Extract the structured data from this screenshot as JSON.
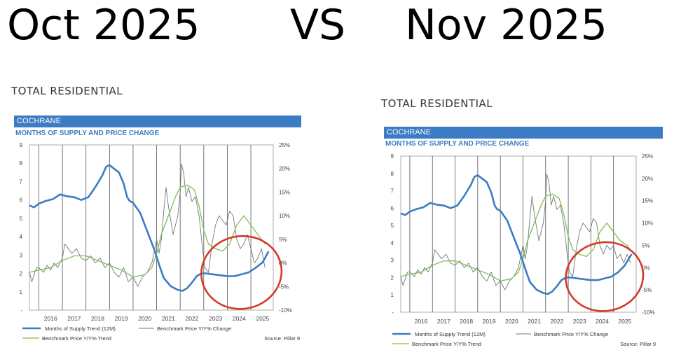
{
  "header": {
    "left": "Oct 2025",
    "vs": "VS",
    "right": "Nov 2025"
  },
  "section_title": "TOTAL RESIDENTIAL",
  "colors": {
    "supply": "#3b7cc4",
    "price": "#777777",
    "trend": "#7fbf4d",
    "circle": "#d23a2a",
    "bar": "#3b7cc4"
  },
  "chart_data": [
    {
      "type": "line",
      "panel": "Oct 2025",
      "area_label": "COCHRANE",
      "title": "MONTHS OF SUPPLY AND PRICE CHANGE",
      "x_tick_labels": [
        "2016",
        "2017",
        "2018",
        "2019",
        "2020",
        "2021",
        "2022",
        "2023",
        "2024",
        "2025"
      ],
      "y_left_ticks": [
        "9",
        "8",
        "7",
        "6",
        "5",
        "4",
        "3",
        "2",
        "1",
        "-"
      ],
      "y_right_ticks": [
        "25%",
        "20%",
        "15%",
        "10%",
        "5%",
        "0%",
        "-5%",
        "-10%"
      ],
      "ylim_left": [
        0,
        9
      ],
      "ylim_right": [
        -10,
        25
      ],
      "xlim": [
        2015.6,
        2025.95
      ],
      "source": "Source: Pillar 9",
      "legend": [
        "Months of Supply Trend (12M)",
        "Benchmark Price Y/Y% Change",
        "Benchmark Price Y/Y% Trend"
      ],
      "series": [
        {
          "name": "Months of Supply Trend (12M)",
          "axis": "left",
          "x": [
            2015.6,
            2015.8,
            2016.0,
            2016.3,
            2016.6,
            2016.9,
            2017.2,
            2017.5,
            2017.8,
            2018.1,
            2018.4,
            2018.7,
            2018.85,
            2019.0,
            2019.2,
            2019.4,
            2019.6,
            2019.75,
            2019.85,
            2020.0,
            2020.3,
            2020.6,
            2020.9,
            2021.1,
            2021.3,
            2021.6,
            2021.9,
            2022.1,
            2022.3,
            2022.5,
            2022.7,
            2022.9,
            2023.1,
            2023.4,
            2023.7,
            2024.0,
            2024.3,
            2024.6,
            2024.9,
            2025.2,
            2025.5,
            2025.75
          ],
          "y": [
            5.7,
            5.6,
            5.8,
            5.95,
            6.05,
            6.3,
            6.2,
            6.15,
            6.0,
            6.15,
            6.7,
            7.35,
            7.8,
            7.9,
            7.7,
            7.5,
            6.9,
            6.15,
            5.95,
            5.85,
            5.3,
            4.3,
            3.3,
            2.5,
            1.75,
            1.3,
            1.1,
            1.05,
            1.2,
            1.5,
            1.85,
            2.0,
            2.0,
            1.95,
            1.9,
            1.85,
            1.85,
            1.95,
            2.05,
            2.3,
            2.6,
            3.2
          ]
        },
        {
          "name": "Benchmark Price Y/Y% Change",
          "axis": "right",
          "x": [
            2015.6,
            2015.7,
            2015.9,
            2016.0,
            2016.2,
            2016.35,
            2016.5,
            2016.65,
            2016.8,
            2017.0,
            2017.1,
            2017.25,
            2017.4,
            2017.6,
            2017.8,
            2018.0,
            2018.2,
            2018.4,
            2018.6,
            2018.8,
            2019.0,
            2019.2,
            2019.4,
            2019.6,
            2019.8,
            2020.0,
            2020.2,
            2020.4,
            2020.6,
            2020.8,
            2021.0,
            2021.1,
            2021.2,
            2021.3,
            2021.4,
            2021.5,
            2021.7,
            2021.9,
            2022.0,
            2022.05,
            2022.15,
            2022.25,
            2022.35,
            2022.5,
            2022.65,
            2022.8,
            2022.95,
            2023.05,
            2023.2,
            2023.35,
            2023.5,
            2023.65,
            2023.8,
            2023.95,
            2024.1,
            2024.25,
            2024.4,
            2024.55,
            2024.7,
            2024.85,
            2025.0,
            2025.15,
            2025.3,
            2025.45,
            2025.6
          ],
          "y": [
            -2,
            -4,
            -1,
            -1,
            -2,
            -0.5,
            -1.5,
            0,
            -1,
            1,
            4,
            3,
            2,
            3,
            1,
            0.5,
            1.5,
            0,
            1,
            -1,
            0,
            -2,
            -3,
            -1,
            -4,
            -3,
            -5,
            -3,
            -2,
            0,
            5,
            2,
            5,
            11,
            16,
            12,
            6,
            10,
            15,
            21,
            19,
            14,
            16,
            13,
            14,
            10,
            3,
            -1,
            -2,
            4,
            8,
            10,
            9,
            8,
            11,
            10,
            5,
            3,
            4,
            6,
            3,
            0,
            1,
            3,
            -1
          ]
        },
        {
          "name": "Benchmark Price Y/Y% Trend",
          "axis": "right",
          "x": [
            2015.6,
            2016.0,
            2016.5,
            2017.0,
            2017.5,
            2018.0,
            2018.5,
            2019.0,
            2019.5,
            2020.0,
            2020.5,
            2020.8,
            2021.0,
            2021.2,
            2021.5,
            2021.8,
            2022.0,
            2022.3,
            2022.6,
            2022.8,
            2023.0,
            2023.2,
            2023.5,
            2023.8,
            2024.1,
            2024.4,
            2024.7,
            2025.0,
            2025.3,
            2025.6
          ],
          "y": [
            -2,
            -1.5,
            -1,
            0.5,
            1.5,
            1.5,
            0.5,
            -0.5,
            -1.5,
            -3,
            -2.5,
            -1,
            2,
            6,
            10,
            14,
            16,
            16.5,
            15.5,
            12,
            7,
            4,
            3,
            2.5,
            4,
            8,
            10,
            8,
            6,
            4
          ]
        }
      ]
    },
    {
      "type": "line",
      "panel": "Nov 2025",
      "area_label": "COCHRANE",
      "title": "MONTHS OF SUPPLY AND PRICE CHANGE",
      "x_tick_labels": [
        "2016",
        "2017",
        "2018",
        "2019",
        "2020",
        "2021",
        "2022",
        "2023",
        "2024",
        "2025"
      ],
      "y_left_ticks": [
        "9",
        "8",
        "7",
        "6",
        "5",
        "4",
        "3",
        "2",
        "1",
        "-"
      ],
      "y_right_ticks": [
        "25%",
        "20%",
        "15%",
        "10%",
        "5%",
        "0%",
        "-5%",
        "-10%"
      ],
      "ylim_left": [
        0,
        9
      ],
      "ylim_right": [
        -10,
        25
      ],
      "xlim": [
        2015.6,
        2026.0
      ],
      "source": "Source: Pillar 9",
      "legend": [
        "Months of Supply Trend (12M)",
        "Benchmark Price Y/Y% Change",
        "Benchmark Price Y/Y% Trend"
      ],
      "series": [
        {
          "name": "Months of Supply Trend (12M)",
          "axis": "left",
          "x": [
            2015.6,
            2015.8,
            2016.0,
            2016.3,
            2016.6,
            2016.9,
            2017.2,
            2017.5,
            2017.8,
            2018.1,
            2018.4,
            2018.7,
            2018.85,
            2019.0,
            2019.2,
            2019.4,
            2019.6,
            2019.75,
            2019.85,
            2020.0,
            2020.3,
            2020.6,
            2020.9,
            2021.1,
            2021.3,
            2021.6,
            2021.9,
            2022.1,
            2022.3,
            2022.5,
            2022.7,
            2022.9,
            2023.1,
            2023.4,
            2023.7,
            2024.0,
            2024.3,
            2024.6,
            2024.9,
            2025.2,
            2025.5,
            2025.8
          ],
          "y": [
            5.7,
            5.6,
            5.8,
            5.95,
            6.05,
            6.3,
            6.2,
            6.15,
            6.0,
            6.15,
            6.7,
            7.35,
            7.8,
            7.9,
            7.7,
            7.5,
            6.9,
            6.15,
            5.95,
            5.85,
            5.3,
            4.3,
            3.3,
            2.5,
            1.75,
            1.3,
            1.1,
            1.05,
            1.2,
            1.5,
            1.85,
            2.0,
            2.0,
            1.95,
            1.9,
            1.85,
            1.85,
            1.95,
            2.05,
            2.3,
            2.7,
            3.35
          ]
        },
        {
          "name": "Benchmark Price Y/Y% Change",
          "axis": "right",
          "x": [
            2015.6,
            2015.7,
            2015.9,
            2016.0,
            2016.2,
            2016.35,
            2016.5,
            2016.65,
            2016.8,
            2017.0,
            2017.1,
            2017.25,
            2017.4,
            2017.6,
            2017.8,
            2018.0,
            2018.2,
            2018.4,
            2018.6,
            2018.8,
            2019.0,
            2019.2,
            2019.4,
            2019.6,
            2019.8,
            2020.0,
            2020.2,
            2020.4,
            2020.6,
            2020.8,
            2021.0,
            2021.1,
            2021.2,
            2021.3,
            2021.4,
            2021.5,
            2021.7,
            2021.9,
            2022.0,
            2022.05,
            2022.15,
            2022.25,
            2022.35,
            2022.5,
            2022.65,
            2022.8,
            2022.95,
            2023.05,
            2023.2,
            2023.35,
            2023.5,
            2023.65,
            2023.8,
            2023.95,
            2024.1,
            2024.25,
            2024.4,
            2024.55,
            2024.7,
            2024.85,
            2025.0,
            2025.15,
            2025.3,
            2025.45,
            2025.6,
            2025.75
          ],
          "y": [
            -2,
            -4,
            -1,
            -1,
            -2,
            -0.5,
            -1.5,
            0,
            -1,
            1,
            4,
            3,
            2,
            3,
            1,
            0.5,
            1.5,
            0,
            1,
            -1,
            0,
            -2,
            -3,
            -1,
            -4,
            -3,
            -5,
            -3,
            -2,
            0,
            5,
            2,
            5,
            11,
            16,
            12,
            6,
            10,
            15,
            21,
            19,
            14,
            16,
            13,
            14,
            10,
            3,
            -1,
            -2,
            4,
            8,
            10,
            9,
            8,
            11,
            10,
            5,
            3,
            5,
            4,
            5,
            2,
            3,
            1,
            3,
            1
          ]
        },
        {
          "name": "Benchmark Price Y/Y% Trend",
          "axis": "right",
          "x": [
            2015.6,
            2016.0,
            2016.5,
            2017.0,
            2017.5,
            2018.0,
            2018.5,
            2019.0,
            2019.5,
            2020.0,
            2020.5,
            2020.8,
            2021.0,
            2021.2,
            2021.5,
            2021.8,
            2022.0,
            2022.3,
            2022.6,
            2022.8,
            2023.0,
            2023.2,
            2023.5,
            2023.8,
            2024.1,
            2024.4,
            2024.7,
            2025.0,
            2025.3,
            2025.6,
            2025.8
          ],
          "y": [
            -2,
            -1.5,
            -1,
            0.5,
            1.5,
            1.5,
            0.5,
            -0.5,
            -1.5,
            -3,
            -2.5,
            -1,
            2,
            6,
            10,
            14,
            16,
            16.5,
            15.5,
            12,
            7,
            4,
            3,
            2.5,
            4,
            8,
            10,
            8,
            6,
            5,
            3.5
          ]
        }
      ]
    }
  ]
}
